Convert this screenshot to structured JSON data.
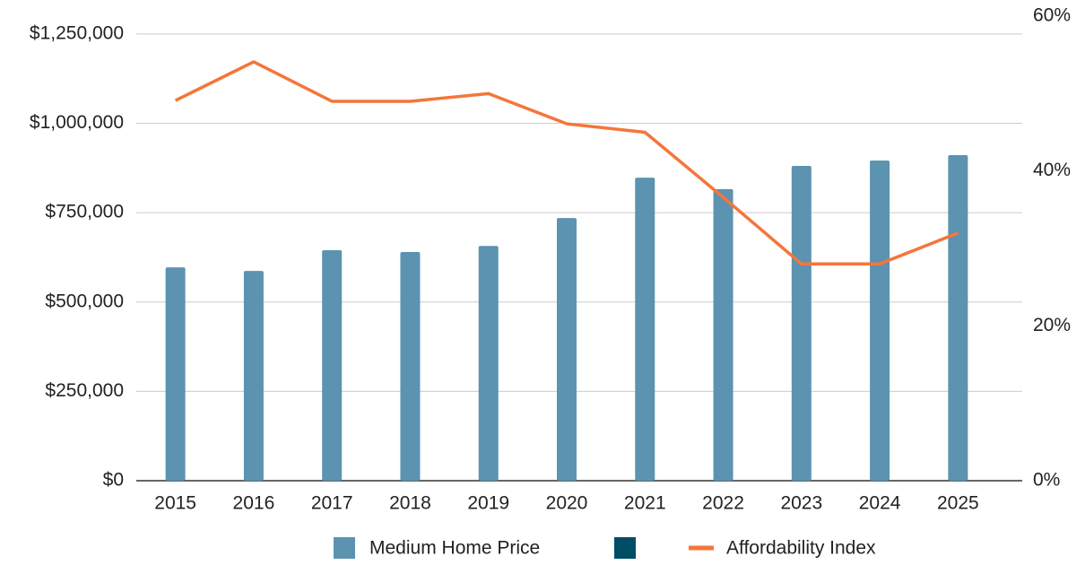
{
  "chart_data": {
    "type": "bar_line",
    "categories": [
      "2015",
      "2016",
      "2017",
      "2018",
      "2019",
      "2020",
      "2021",
      "2022",
      "2023",
      "2024",
      "2025"
    ],
    "series": [
      {
        "name": "Medium Home Price",
        "color": "#5b93b0",
        "type": "bar",
        "values": [
          597000,
          587000,
          645000,
          640000,
          657000,
          735000,
          848000,
          816000,
          881000,
          896000,
          911000
        ]
      },
      {
        "name": "Affordability Index",
        "color": "#f4763a",
        "type": "line",
        "axis": "y2",
        "values": [
          49.1,
          54.1,
          49,
          49,
          50,
          46.1,
          45,
          36.6,
          28,
          28,
          32
        ]
      }
    ],
    "ylim": [
      0,
      1300000
    ],
    "yticks": [
      {
        "value": 0,
        "label": "$0"
      },
      {
        "value": 250000,
        "label": "$250,000"
      },
      {
        "value": 500000,
        "label": "$500,000"
      },
      {
        "value": 750000,
        "label": "$750,000"
      },
      {
        "value": 1000000,
        "label": "$1,000,000"
      },
      {
        "value": 1250000,
        "label": "$1,250,000"
      }
    ],
    "y2lim": [
      0,
      60
    ],
    "y2ticks": [
      {
        "value": 0,
        "label": "0%"
      },
      {
        "value": 20,
        "label": "20%"
      },
      {
        "value": 40,
        "label": "40%"
      },
      {
        "value": 60,
        "label": "60%"
      }
    ],
    "grid": true
  }
}
